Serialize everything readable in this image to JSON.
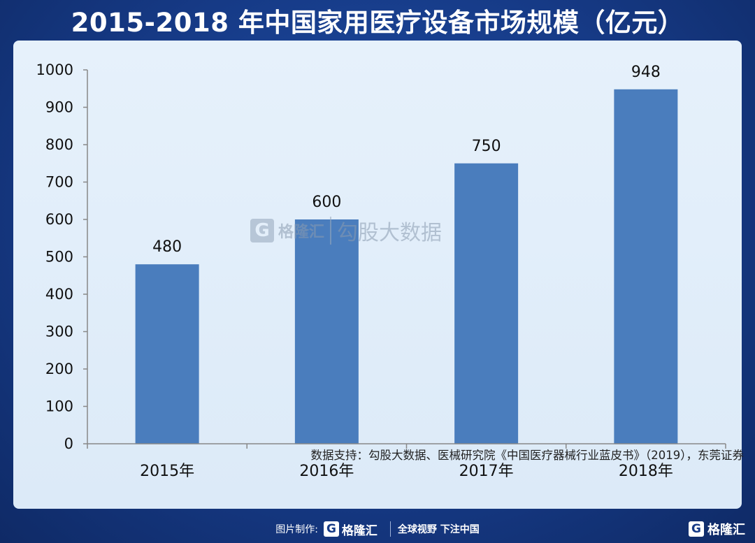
{
  "title": "2015-2018 年中国家用医疗设备市场规模（亿元）",
  "chart_data": {
    "type": "bar",
    "categories": [
      "2015年",
      "2016年",
      "2017年",
      "2018年"
    ],
    "values": [
      480,
      600,
      750,
      948
    ],
    "ylim": [
      0,
      1000
    ],
    "yticks": [
      0,
      100,
      200,
      300,
      400,
      500,
      600,
      700,
      800,
      900,
      1000
    ],
    "grid": false,
    "bar_color": "#4a7dbd"
  },
  "source": "数据支持：勾股大数据、医械研究院《中国医疗器械行业蓝皮书》（2019），东莞证券",
  "watermark": {
    "logo_letter": "G",
    "brand": "格隆汇",
    "text": "勾股大数据"
  },
  "footer": {
    "made_by": "图片制作:",
    "logo_letter": "G",
    "brand": "格隆汇",
    "slogan": "全球视野 下注中国"
  },
  "corner": {
    "logo_letter": "G",
    "brand": "格隆汇"
  },
  "colors": {
    "background": "#163a86",
    "panel": "#e3eefa",
    "bar": "#4a7dbd"
  }
}
